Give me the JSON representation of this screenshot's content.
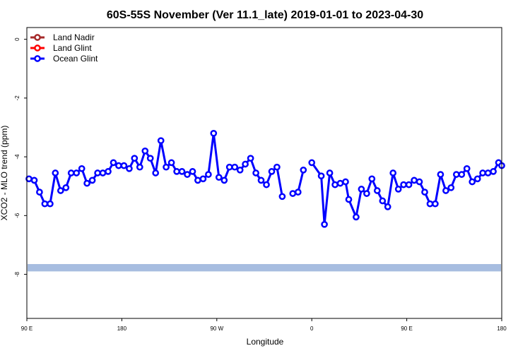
{
  "chart_data": {
    "type": "line",
    "title": "60S-55S November (Ver 11.1_late)   2019-01-01 to 2023-04-30",
    "xlabel": "Longitude",
    "ylabel": "XCO2 - MLO trend (ppm)",
    "x_ticks": [
      {
        "value": 90,
        "label": "90 E"
      },
      {
        "value": 180,
        "label": "180"
      },
      {
        "value": 270,
        "label": "90 W"
      },
      {
        "value": 360,
        "label": "0"
      },
      {
        "value": 450,
        "label": "90 E"
      },
      {
        "value": 540,
        "label": "180"
      }
    ],
    "y_ticks": [
      {
        "value": 0,
        "label": "0"
      },
      {
        "value": -2,
        "label": "-2"
      },
      {
        "value": -4,
        "label": "-4"
      },
      {
        "value": -6,
        "label": "-6"
      },
      {
        "value": -8,
        "label": "-8"
      }
    ],
    "xlim": [
      90,
      540
    ],
    "ylim": [
      -9.5,
      0.4
    ],
    "legend_position": "top-left",
    "legend": [
      {
        "name": "Land Nadir",
        "color": "#a52a2a"
      },
      {
        "name": "Land Glint",
        "color": "#ff0000"
      },
      {
        "name": "Ocean Glint",
        "color": "#0000ff"
      }
    ],
    "band": {
      "y_min": -7.9,
      "y_max": -7.65,
      "color": "#a7bde0"
    },
    "series": [
      {
        "name": "Ocean Glint",
        "color": "#0000ff",
        "segments": [
          [
            [
              92,
              -4.75
            ],
            [
              97,
              -4.8
            ],
            [
              102,
              -5.2
            ],
            [
              107,
              -5.6
            ],
            [
              112,
              -5.6
            ],
            [
              117,
              -4.55
            ],
            [
              122,
              -5.15
            ],
            [
              127,
              -5.05
            ],
            [
              132,
              -4.55
            ],
            [
              137,
              -4.55
            ],
            [
              142,
              -4.4
            ],
            [
              147,
              -4.9
            ],
            [
              152,
              -4.8
            ],
            [
              157,
              -4.55
            ],
            [
              162,
              -4.55
            ],
            [
              167,
              -4.5
            ],
            [
              172,
              -4.2
            ],
            [
              177,
              -4.3
            ],
            [
              182,
              -4.3
            ],
            [
              187,
              -4.4
            ],
            [
              192,
              -4.05
            ],
            [
              197,
              -4.35
            ],
            [
              202,
              -3.8
            ],
            [
              207,
              -4.05
            ],
            [
              212,
              -4.55
            ],
            [
              217,
              -3.45
            ],
            [
              222,
              -4.35
            ],
            [
              227,
              -4.2
            ],
            [
              232,
              -4.5
            ],
            [
              237,
              -4.5
            ],
            [
              242,
              -4.6
            ],
            [
              247,
              -4.5
            ],
            [
              252,
              -4.8
            ],
            [
              257,
              -4.75
            ],
            [
              262,
              -4.6
            ],
            [
              267,
              -3.2
            ],
            [
              272,
              -4.7
            ],
            [
              277,
              -4.8
            ],
            [
              282,
              -4.35
            ],
            [
              287,
              -4.35
            ],
            [
              292,
              -4.45
            ],
            [
              297,
              -4.25
            ],
            [
              302,
              -4.05
            ],
            [
              307,
              -4.55
            ],
            [
              312,
              -4.8
            ],
            [
              317,
              -4.95
            ],
            [
              322,
              -4.5
            ],
            [
              327,
              -4.35
            ],
            [
              332,
              -5.35
            ]
          ],
          [
            [
              342,
              -5.25
            ],
            [
              347,
              -5.2
            ],
            [
              352,
              -4.45
            ]
          ],
          [
            [
              360,
              -4.2
            ],
            [
              369,
              -4.65
            ],
            [
              372,
              -6.3
            ],
            [
              377,
              -4.55
            ],
            [
              382,
              -4.95
            ],
            [
              387,
              -4.9
            ],
            [
              392,
              -4.85
            ],
            [
              395,
              -5.45
            ],
            [
              402,
              -6.05
            ],
            [
              407,
              -5.1
            ],
            [
              412,
              -5.25
            ],
            [
              417,
              -4.75
            ],
            [
              422,
              -5.15
            ],
            [
              427,
              -5.5
            ],
            [
              432,
              -5.7
            ],
            [
              437,
              -4.55
            ],
            [
              442,
              -5.1
            ],
            [
              447,
              -4.95
            ],
            [
              452,
              -4.95
            ],
            [
              457,
              -4.8
            ],
            [
              462,
              -4.85
            ],
            [
              467,
              -5.2
            ],
            [
              472,
              -5.6
            ],
            [
              477,
              -5.6
            ],
            [
              482,
              -4.6
            ],
            [
              487,
              -5.15
            ],
            [
              492,
              -5.05
            ],
            [
              497,
              -4.6
            ],
            [
              502,
              -4.6
            ],
            [
              507,
              -4.4
            ],
            [
              512,
              -4.85
            ],
            [
              517,
              -4.75
            ],
            [
              522,
              -4.55
            ],
            [
              527,
              -4.55
            ],
            [
              532,
              -4.5
            ],
            [
              537,
              -4.2
            ],
            [
              540,
              -4.3
            ]
          ]
        ]
      }
    ]
  }
}
